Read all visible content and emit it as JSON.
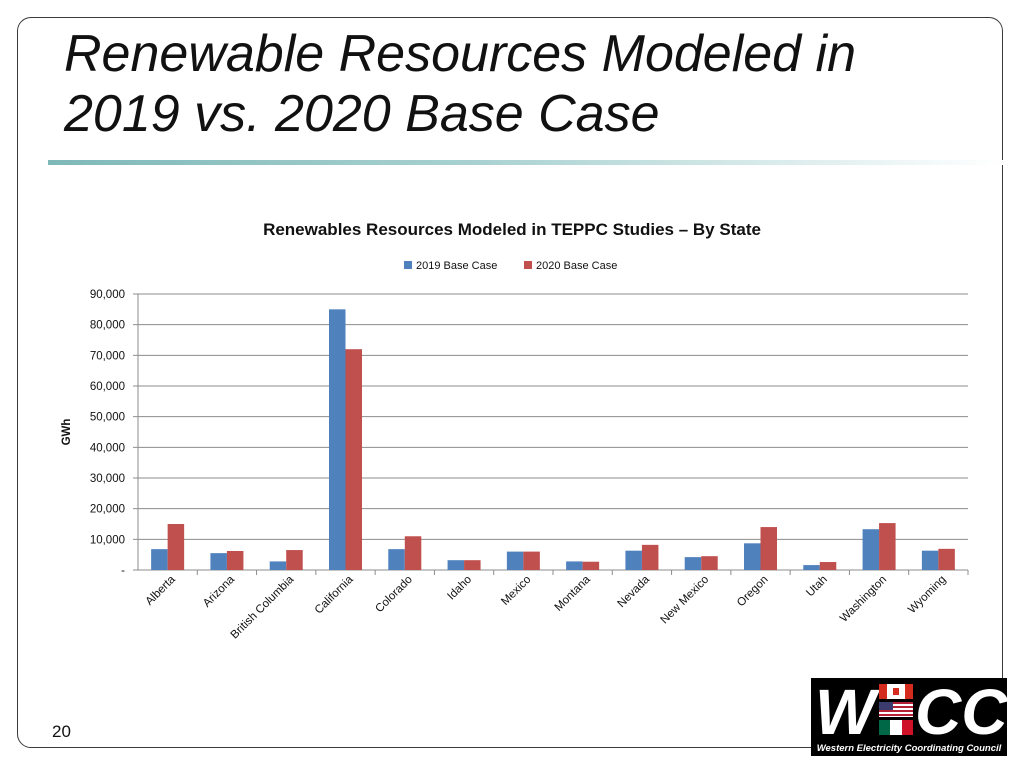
{
  "slide": {
    "title": "Renewable Resources Modeled in 2019 vs. 2020 Base Case",
    "page_number": "20"
  },
  "logo": {
    "letters": "W CC",
    "caption": "Western Electricity Coordinating Council"
  },
  "chart_data": {
    "type": "bar",
    "title": "Renewables Resources Modeled in TEPPC Studies – By State",
    "xlabel": "",
    "ylabel": "GWh",
    "ylim": [
      0,
      90000
    ],
    "yticks": [
      0,
      10000,
      20000,
      30000,
      40000,
      50000,
      60000,
      70000,
      80000,
      90000
    ],
    "ytick_labels": [
      "-",
      "10,000",
      "20,000",
      "30,000",
      "40,000",
      "50,000",
      "60,000",
      "70,000",
      "80,000",
      "90,000"
    ],
    "grid": true,
    "legend_position": "top-center",
    "categories": [
      "Alberta",
      "Arizona",
      "British Columbia",
      "California",
      "Colorado",
      "Idaho",
      "Mexico",
      "Montana",
      "Nevada",
      "New Mexico",
      "Oregon",
      "Utah",
      "Washington",
      "Wyoming"
    ],
    "series": [
      {
        "name": "2019 Base Case",
        "color": "#4f81bd",
        "values": [
          6800,
          5500,
          2800,
          85000,
          6800,
          3200,
          6000,
          2800,
          6300,
          4200,
          8700,
          1600,
          13300,
          6300
        ]
      },
      {
        "name": "2020 Base Case",
        "color": "#c0504d",
        "values": [
          15000,
          6200,
          6500,
          72000,
          11000,
          3200,
          6000,
          2700,
          8200,
          4500,
          14000,
          2600,
          15300,
          6900
        ]
      }
    ]
  }
}
